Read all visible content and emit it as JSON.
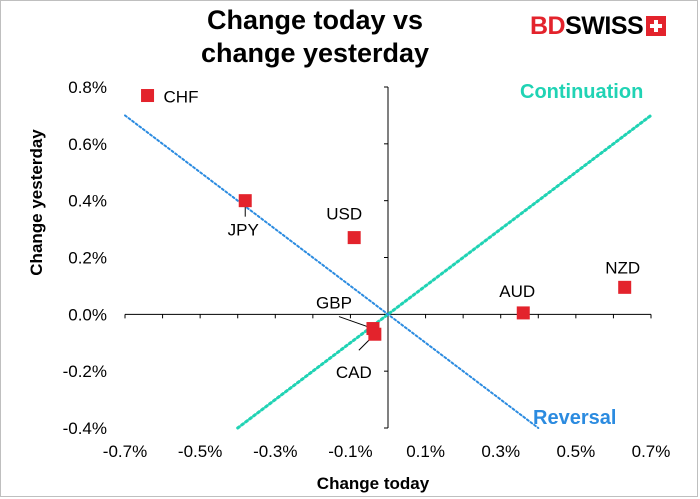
{
  "chart_data": {
    "type": "scatter",
    "title": "Change today vs change yesterday",
    "title_lines": [
      "Change today vs",
      "change yesterday"
    ],
    "xlabel": "Change today",
    "ylabel": "Change yesterday",
    "xlim": [
      -0.7,
      0.7
    ],
    "ylim": [
      -0.4,
      0.8
    ],
    "x_ticks": [
      "-0.7%",
      "-0.5%",
      "-0.3%",
      "-0.1%",
      "0.1%",
      "0.3%",
      "0.5%",
      "0.7%"
    ],
    "x_tick_values": [
      -0.7,
      -0.5,
      -0.3,
      -0.1,
      0.1,
      0.3,
      0.5,
      0.7
    ],
    "y_ticks": [
      "-0.4%",
      "-0.2%",
      "0.0%",
      "0.2%",
      "0.4%",
      "0.6%",
      "0.8%"
    ],
    "y_tick_values": [
      -0.4,
      -0.2,
      0.0,
      0.2,
      0.4,
      0.6,
      0.8
    ],
    "grid": false,
    "marker_color": "#e3232c",
    "points": [
      {
        "label": "CHF",
        "x": -0.64,
        "y": 0.77
      },
      {
        "label": "JPY",
        "x": -0.38,
        "y": 0.4
      },
      {
        "label": "USD",
        "x": -0.09,
        "y": 0.27
      },
      {
        "label": "GBP",
        "x": -0.04,
        "y": -0.05
      },
      {
        "label": "CAD",
        "x": -0.035,
        "y": -0.07
      },
      {
        "label": "AUD",
        "x": 0.36,
        "y": 0.005
      },
      {
        "label": "NZD",
        "x": 0.63,
        "y": 0.095
      }
    ],
    "lines": [
      {
        "name": "Continuation",
        "color": "#20d3b4",
        "x": [
          -0.4,
          0.7
        ],
        "y": [
          -0.4,
          0.7
        ]
      },
      {
        "name": "Reversal",
        "color": "#2b8be0",
        "x": [
          -0.7,
          0.4
        ],
        "y": [
          0.7,
          -0.4
        ]
      }
    ]
  },
  "brand": {
    "part1": "BD",
    "part2": "SWISS"
  }
}
